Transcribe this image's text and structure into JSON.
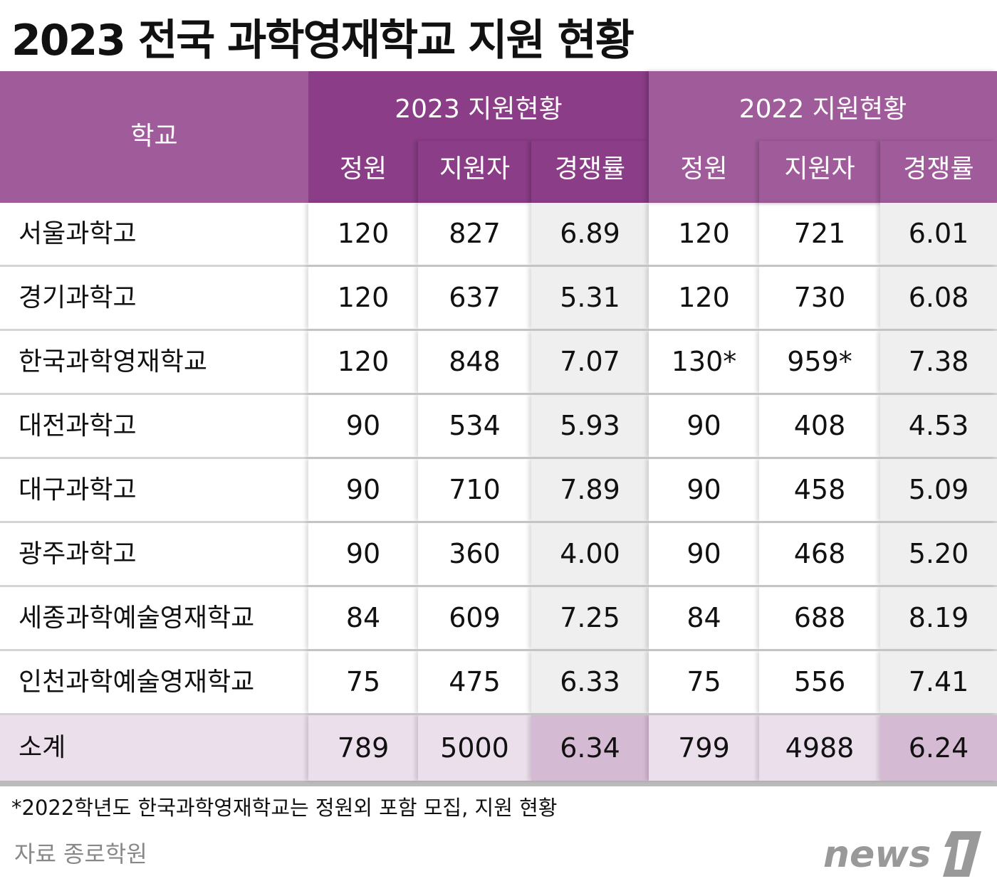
{
  "title": "2023 전국 과학영재학교 지원 현황",
  "chart_data": {
    "type": "table",
    "title": "2023 전국 과학영재학교 지원 현황",
    "header": {
      "school": "학교",
      "group_2023": "2023 지원현황",
      "group_2022": "2022 지원현황",
      "columns": [
        "정원",
        "지원자",
        "경쟁률",
        "정원",
        "지원자",
        "경쟁률"
      ]
    },
    "rows": [
      {
        "school": "서울과학고",
        "values": [
          "120",
          "827",
          "6.89",
          "120",
          "721",
          "6.01"
        ]
      },
      {
        "school": "경기과학고",
        "values": [
          "120",
          "637",
          "5.31",
          "120",
          "730",
          "6.08"
        ]
      },
      {
        "school": "한국과학영재학교",
        "values": [
          "120",
          "848",
          "7.07",
          "130*",
          "959*",
          "7.38"
        ]
      },
      {
        "school": "대전과학고",
        "values": [
          "90",
          "534",
          "5.93",
          "90",
          "408",
          "4.53"
        ]
      },
      {
        "school": "대구과학고",
        "values": [
          "90",
          "710",
          "7.89",
          "90",
          "458",
          "5.09"
        ]
      },
      {
        "school": "광주과학고",
        "values": [
          "90",
          "360",
          "4.00",
          "90",
          "468",
          "5.20"
        ]
      },
      {
        "school": "세종과학예술영재학교",
        "values": [
          "84",
          "609",
          "7.25",
          "84",
          "688",
          "8.19"
        ]
      },
      {
        "school": "인천과학예술영재학교",
        "values": [
          "75",
          "475",
          "6.33",
          "75",
          "556",
          "7.41"
        ]
      }
    ],
    "total": {
      "school": "소계",
      "values": [
        "789",
        "5000",
        "6.34",
        "799",
        "4988",
        "6.24"
      ]
    }
  },
  "footnote": "*2022학년도 한국과학영재학교는 정원외 포함 모집, 지원 현황",
  "source": "자료 종로학원",
  "logo": "news1",
  "colors": {
    "header": "#a05c9a",
    "header_2023": "#8b3d87",
    "rate_bg": "#efefef",
    "total_bg": "#ecdfec",
    "total_rate_bg": "#d5bad3"
  }
}
